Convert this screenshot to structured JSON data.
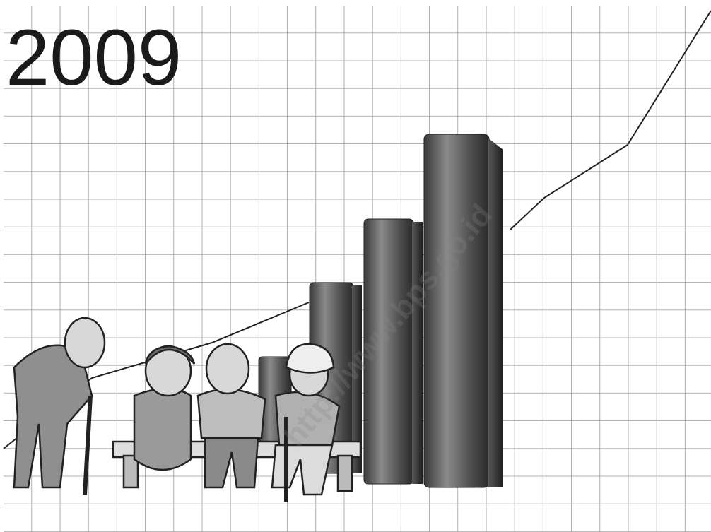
{
  "title": "2009",
  "watermark": "http://www.bps.go.id"
}
